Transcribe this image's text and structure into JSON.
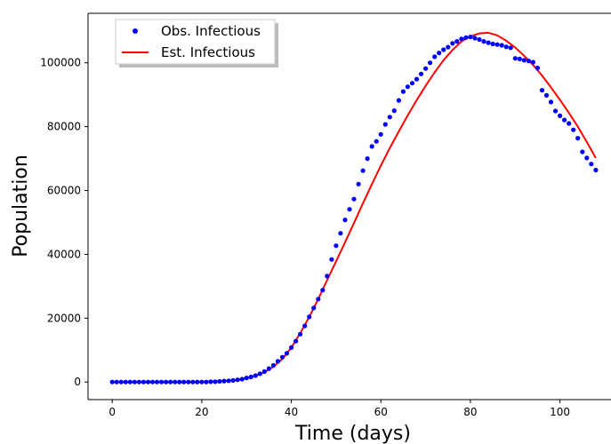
{
  "chart_data": {
    "type": "line",
    "xlabel": "Time (days)",
    "ylabel": "Population",
    "xlim": [
      -5.4,
      111.4
    ],
    "ylim": [
      -5500,
      115500
    ],
    "x_ticks": [
      0,
      20,
      40,
      60,
      80,
      100
    ],
    "y_ticks": [
      0,
      20000,
      40000,
      60000,
      80000,
      100000
    ],
    "grid": false,
    "legend_position": "top-left",
    "series": [
      {
        "name": "Obs. Infectious",
        "style": "markers",
        "color": "#0000ff",
        "x": [
          0,
          1,
          2,
          3,
          4,
          5,
          6,
          7,
          8,
          9,
          10,
          11,
          12,
          13,
          14,
          15,
          16,
          17,
          18,
          19,
          20,
          21,
          22,
          23,
          24,
          25,
          26,
          27,
          28,
          29,
          30,
          31,
          32,
          33,
          34,
          35,
          36,
          37,
          38,
          39,
          40,
          41,
          42,
          43,
          44,
          45,
          46,
          47,
          48,
          49,
          50,
          51,
          52,
          53,
          54,
          55,
          56,
          57,
          58,
          59,
          60,
          61,
          62,
          63,
          64,
          65,
          66,
          67,
          68,
          69,
          70,
          71,
          72,
          73,
          74,
          75,
          76,
          77,
          78,
          79,
          80,
          81,
          82,
          83,
          84,
          85,
          86,
          87,
          88,
          89,
          90,
          91,
          92,
          93,
          94,
          95,
          96,
          97,
          98,
          99,
          100,
          101,
          102,
          103,
          104,
          105,
          106,
          107,
          108
        ],
        "y": [
          0,
          0,
          0,
          0,
          0,
          0,
          0,
          0,
          0,
          0,
          0,
          0,
          0,
          0,
          0,
          0,
          0,
          0,
          0,
          0,
          0,
          0,
          100,
          100,
          200,
          300,
          400,
          500,
          700,
          900,
          1300,
          1600,
          2000,
          2600,
          3300,
          4200,
          5200,
          6500,
          7800,
          9000,
          10800,
          12800,
          15000,
          17600,
          20400,
          23200,
          26000,
          28800,
          33200,
          38400,
          42700,
          46600,
          50800,
          54100,
          57300,
          62000,
          66200,
          70000,
          73800,
          75400,
          77600,
          80700,
          83000,
          85000,
          88200,
          91000,
          92500,
          93600,
          94900,
          96500,
          98200,
          100000,
          101900,
          103100,
          104100,
          104900,
          106100,
          106700,
          107500,
          107900,
          108100,
          107700,
          107300,
          106700,
          106300,
          105900,
          105700,
          105500,
          105000,
          104700,
          101400,
          101200,
          100800,
          100600,
          100200,
          98400,
          91400,
          89800,
          87700,
          84900,
          83400,
          82100,
          81000,
          79000,
          76400,
          72100,
          70200,
          68300,
          66400
        ]
      },
      {
        "name": "Est. Infectious",
        "style": "line",
        "color": "#ff0000",
        "x": [
          0,
          5,
          10,
          15,
          20,
          25,
          28,
          30,
          32,
          34,
          36,
          38,
          40,
          42,
          44,
          46,
          48,
          50,
          52,
          54,
          56,
          58,
          60,
          62,
          64,
          66,
          68,
          70,
          72,
          74,
          76,
          78,
          80,
          82,
          84,
          86,
          88,
          90,
          92,
          94,
          96,
          98,
          100,
          102,
          104,
          106,
          108
        ],
        "y": [
          0,
          0,
          0,
          0,
          100,
          300,
          700,
          1300,
          2000,
          3000,
          4800,
          7200,
          10800,
          15300,
          20400,
          26000,
          31900,
          37800,
          43800,
          49800,
          56000,
          62000,
          67800,
          73300,
          78500,
          83500,
          88300,
          92800,
          97000,
          100800,
          104000,
          106700,
          108300,
          109200,
          109400,
          108600,
          106900,
          104800,
          102200,
          99300,
          96000,
          92300,
          88400,
          84300,
          80000,
          75200,
          70200
        ]
      }
    ]
  }
}
